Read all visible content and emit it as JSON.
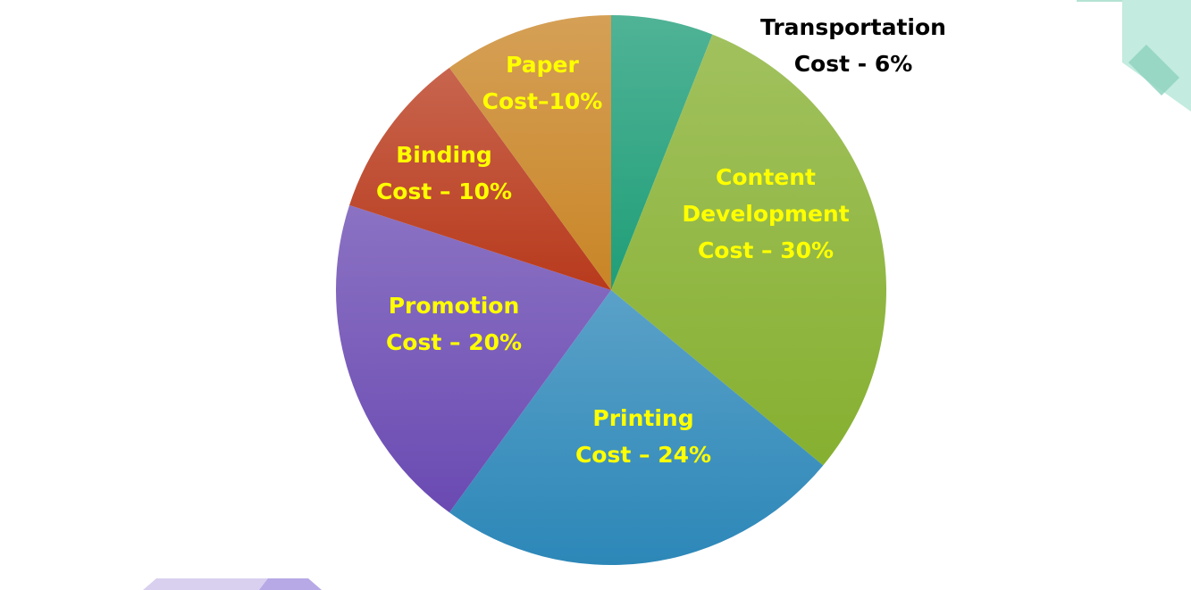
{
  "chart_data": {
    "type": "pie",
    "title": "",
    "slices": [
      {
        "label_lines": [
          "Transportation",
          "Cost - 6%"
        ],
        "value": 6,
        "color": "#1f9e78",
        "label_color": "#000000"
      },
      {
        "label_lines": [
          "Content",
          "Development",
          "Cost – 30%"
        ],
        "value": 30,
        "color": "#86b030",
        "label_color": "#ffff00"
      },
      {
        "label_lines": [
          "Printing",
          "Cost – 24%"
        ],
        "value": 24,
        "color": "#2c87b8",
        "label_color": "#ffff00"
      },
      {
        "label_lines": [
          "Promotion",
          "Cost – 20%"
        ],
        "value": 20,
        "color": "#6a4ab2",
        "label_color": "#ffff00"
      },
      {
        "label_lines": [
          "Binding",
          "Cost – 10%"
        ],
        "value": 10,
        "color": "#b83a1c",
        "label_color": "#ffff00"
      },
      {
        "label_lines": [
          "Paper",
          "Cost–10%"
        ],
        "value": 10,
        "color": "#c98526",
        "label_color": "#ffff00"
      }
    ]
  }
}
